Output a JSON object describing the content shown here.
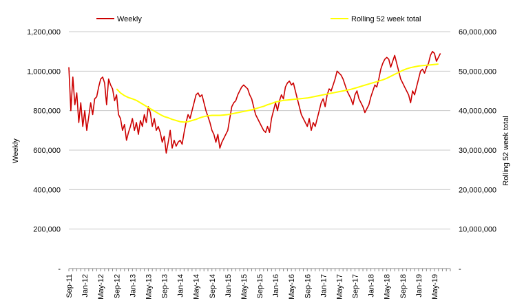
{
  "chart_data": {
    "type": "line",
    "x_type": "date",
    "x_ticks": [
      "Sep-11",
      "Jan-12",
      "May-12",
      "Sep-12",
      "Jan-13",
      "May-13",
      "Sep-13",
      "Jan-14",
      "May-14",
      "Sep-14",
      "Jan-15",
      "May-15",
      "Sep-15",
      "Jan-16",
      "May-16",
      "Sep-16",
      "Jan-17",
      "May-17",
      "Sep-17",
      "Jan-18",
      "May-18",
      "Sep-18",
      "Jan-19",
      "May-19"
    ],
    "xlim": [
      "2011-09",
      "2019-09"
    ],
    "y_left": {
      "label": "Weekly",
      "ticks": [
        "-",
        "200,000",
        "400,000",
        "600,000",
        "800,000",
        "1,000,000",
        "1,200,000"
      ],
      "ylim": [
        0,
        1200000
      ]
    },
    "y_right": {
      "label": "Rolling 52 week total",
      "ticks": [
        "-",
        "10,000,000",
        "20,000,000",
        "30,000,000",
        "40,000,000",
        "50,000,000",
        "60,000,000"
      ],
      "ylim": [
        0,
        60000000
      ]
    },
    "grid": true,
    "legend_position": "top",
    "series": [
      {
        "name": "Weekly",
        "axis": "left",
        "color": "#cc0000",
        "points": [
          [
            "2011-09",
            1020000
          ],
          [
            "2011-09",
            800000
          ],
          [
            "2011-10",
            970000
          ],
          [
            "2011-10",
            830000
          ],
          [
            "2011-11",
            890000
          ],
          [
            "2011-11",
            740000
          ],
          [
            "2011-12",
            840000
          ],
          [
            "2011-12",
            720000
          ],
          [
            "2012-01",
            800000
          ],
          [
            "2012-01",
            700000
          ],
          [
            "2012-02",
            770000
          ],
          [
            "2012-02",
            840000
          ],
          [
            "2012-03",
            780000
          ],
          [
            "2012-03",
            860000
          ],
          [
            "2012-04",
            870000
          ],
          [
            "2012-04",
            920000
          ],
          [
            "2012-05",
            960000
          ],
          [
            "2012-05",
            970000
          ],
          [
            "2012-06",
            940000
          ],
          [
            "2012-06",
            830000
          ],
          [
            "2012-07",
            960000
          ],
          [
            "2012-07",
            930000
          ],
          [
            "2012-08",
            910000
          ],
          [
            "2012-08",
            850000
          ],
          [
            "2012-09",
            880000
          ],
          [
            "2012-09",
            780000
          ],
          [
            "2012-10",
            760000
          ],
          [
            "2012-10",
            700000
          ],
          [
            "2012-11",
            730000
          ],
          [
            "2012-11",
            650000
          ],
          [
            "2012-12",
            690000
          ],
          [
            "2012-12",
            720000
          ],
          [
            "2013-01",
            760000
          ],
          [
            "2013-01",
            700000
          ],
          [
            "2013-02",
            740000
          ],
          [
            "2013-02",
            680000
          ],
          [
            "2013-03",
            750000
          ],
          [
            "2013-03",
            720000
          ],
          [
            "2013-04",
            780000
          ],
          [
            "2013-04",
            740000
          ],
          [
            "2013-05",
            820000
          ],
          [
            "2013-05",
            790000
          ],
          [
            "2013-06",
            720000
          ],
          [
            "2013-06",
            760000
          ],
          [
            "2013-07",
            700000
          ],
          [
            "2013-07",
            720000
          ],
          [
            "2013-08",
            690000
          ],
          [
            "2013-08",
            640000
          ],
          [
            "2013-09",
            670000
          ],
          [
            "2013-09",
            585000
          ],
          [
            "2013-10",
            640000
          ],
          [
            "2013-10",
            700000
          ],
          [
            "2013-11",
            610000
          ],
          [
            "2013-11",
            650000
          ],
          [
            "2013-12",
            620000
          ],
          [
            "2013-12",
            640000
          ],
          [
            "2014-01",
            650000
          ],
          [
            "2014-01",
            630000
          ],
          [
            "2014-02",
            690000
          ],
          [
            "2014-02",
            740000
          ],
          [
            "2014-03",
            780000
          ],
          [
            "2014-03",
            760000
          ],
          [
            "2014-04",
            800000
          ],
          [
            "2014-04",
            840000
          ],
          [
            "2014-05",
            880000
          ],
          [
            "2014-05",
            890000
          ],
          [
            "2014-06",
            870000
          ],
          [
            "2014-06",
            880000
          ],
          [
            "2014-07",
            840000
          ],
          [
            "2014-07",
            800000
          ],
          [
            "2014-08",
            770000
          ],
          [
            "2014-08",
            740000
          ],
          [
            "2014-09",
            700000
          ],
          [
            "2014-09",
            680000
          ],
          [
            "2014-10",
            640000
          ],
          [
            "2014-10",
            680000
          ],
          [
            "2014-11",
            610000
          ],
          [
            "2014-11",
            640000
          ],
          [
            "2014-12",
            660000
          ],
          [
            "2014-12",
            680000
          ],
          [
            "2015-01",
            700000
          ],
          [
            "2015-01",
            760000
          ],
          [
            "2015-02",
            820000
          ],
          [
            "2015-02",
            840000
          ],
          [
            "2015-03",
            850000
          ],
          [
            "2015-03",
            880000
          ],
          [
            "2015-04",
            900000
          ],
          [
            "2015-04",
            920000
          ],
          [
            "2015-05",
            930000
          ],
          [
            "2015-05",
            920000
          ],
          [
            "2015-06",
            910000
          ],
          [
            "2015-06",
            880000
          ],
          [
            "2015-07",
            860000
          ],
          [
            "2015-07",
            820000
          ],
          [
            "2015-08",
            780000
          ],
          [
            "2015-08",
            760000
          ],
          [
            "2015-09",
            740000
          ],
          [
            "2015-09",
            720000
          ],
          [
            "2015-10",
            700000
          ],
          [
            "2015-10",
            690000
          ],
          [
            "2015-11",
            720000
          ],
          [
            "2015-11",
            690000
          ],
          [
            "2015-12",
            760000
          ],
          [
            "2015-12",
            800000
          ],
          [
            "2016-01",
            840000
          ],
          [
            "2016-01",
            800000
          ],
          [
            "2016-02",
            850000
          ],
          [
            "2016-02",
            880000
          ],
          [
            "2016-03",
            860000
          ],
          [
            "2016-03",
            920000
          ],
          [
            "2016-04",
            940000
          ],
          [
            "2016-04",
            950000
          ],
          [
            "2016-05",
            930000
          ],
          [
            "2016-05",
            940000
          ],
          [
            "2016-06",
            900000
          ],
          [
            "2016-06",
            860000
          ],
          [
            "2016-07",
            820000
          ],
          [
            "2016-07",
            780000
          ],
          [
            "2016-08",
            760000
          ],
          [
            "2016-08",
            740000
          ],
          [
            "2016-09",
            720000
          ],
          [
            "2016-09",
            760000
          ],
          [
            "2016-10",
            700000
          ],
          [
            "2016-10",
            740000
          ],
          [
            "2016-11",
            720000
          ],
          [
            "2016-11",
            760000
          ],
          [
            "2016-12",
            800000
          ],
          [
            "2016-12",
            840000
          ],
          [
            "2017-01",
            860000
          ],
          [
            "2017-01",
            820000
          ],
          [
            "2017-02",
            880000
          ],
          [
            "2017-02",
            910000
          ],
          [
            "2017-03",
            900000
          ],
          [
            "2017-03",
            930000
          ],
          [
            "2017-04",
            960000
          ],
          [
            "2017-04",
            1000000
          ],
          [
            "2017-05",
            990000
          ],
          [
            "2017-05",
            980000
          ],
          [
            "2017-06",
            960000
          ],
          [
            "2017-06",
            930000
          ],
          [
            "2017-07",
            900000
          ],
          [
            "2017-07",
            880000
          ],
          [
            "2017-08",
            860000
          ],
          [
            "2017-08",
            830000
          ],
          [
            "2017-09",
            880000
          ],
          [
            "2017-09",
            900000
          ],
          [
            "2017-10",
            860000
          ],
          [
            "2017-10",
            840000
          ],
          [
            "2017-11",
            820000
          ],
          [
            "2017-11",
            790000
          ],
          [
            "2017-12",
            810000
          ],
          [
            "2017-12",
            830000
          ],
          [
            "2018-01",
            870000
          ],
          [
            "2018-01",
            900000
          ],
          [
            "2018-02",
            930000
          ],
          [
            "2018-02",
            920000
          ],
          [
            "2018-03",
            960000
          ],
          [
            "2018-03",
            1010000
          ],
          [
            "2018-04",
            1040000
          ],
          [
            "2018-04",
            1060000
          ],
          [
            "2018-05",
            1070000
          ],
          [
            "2018-05",
            1060000
          ],
          [
            "2018-06",
            1020000
          ],
          [
            "2018-06",
            1050000
          ],
          [
            "2018-07",
            1080000
          ],
          [
            "2018-07",
            1040000
          ],
          [
            "2018-08",
            1000000
          ],
          [
            "2018-08",
            960000
          ],
          [
            "2018-09",
            940000
          ],
          [
            "2018-09",
            920000
          ],
          [
            "2018-10",
            900000
          ],
          [
            "2018-10",
            880000
          ],
          [
            "2018-11",
            840000
          ],
          [
            "2018-11",
            900000
          ],
          [
            "2018-12",
            880000
          ],
          [
            "2018-12",
            920000
          ],
          [
            "2019-01",
            960000
          ],
          [
            "2019-01",
            1000000
          ],
          [
            "2019-02",
            1010000
          ],
          [
            "2019-02",
            990000
          ],
          [
            "2019-03",
            1020000
          ],
          [
            "2019-03",
            1040000
          ],
          [
            "2019-04",
            1080000
          ],
          [
            "2019-04",
            1100000
          ],
          [
            "2019-05",
            1090000
          ],
          [
            "2019-05",
            1050000
          ],
          [
            "2019-06",
            1070000
          ],
          [
            "2019-06",
            1090000
          ]
        ]
      },
      {
        "name": "Rolling 52 week total",
        "axis": "right",
        "color": "#ffff00",
        "points": [
          [
            "2012-09",
            45500000
          ],
          [
            "2012-10",
            44500000
          ],
          [
            "2012-11",
            43800000
          ],
          [
            "2012-12",
            43300000
          ],
          [
            "2013-01",
            43000000
          ],
          [
            "2013-02",
            42600000
          ],
          [
            "2013-03",
            42000000
          ],
          [
            "2013-04",
            41400000
          ],
          [
            "2013-05",
            40800000
          ],
          [
            "2013-06",
            40200000
          ],
          [
            "2013-07",
            39600000
          ],
          [
            "2013-08",
            39000000
          ],
          [
            "2013-09",
            38500000
          ],
          [
            "2013-10",
            38200000
          ],
          [
            "2013-11",
            37800000
          ],
          [
            "2013-12",
            37500000
          ],
          [
            "2014-01",
            37200000
          ],
          [
            "2014-02",
            37100000
          ],
          [
            "2014-03",
            37200000
          ],
          [
            "2014-04",
            37500000
          ],
          [
            "2014-05",
            37800000
          ],
          [
            "2014-06",
            38200000
          ],
          [
            "2014-07",
            38500000
          ],
          [
            "2014-08",
            38700000
          ],
          [
            "2014-09",
            38800000
          ],
          [
            "2014-10",
            38800000
          ],
          [
            "2014-11",
            38800000
          ],
          [
            "2014-12",
            38900000
          ],
          [
            "2015-01",
            39000000
          ],
          [
            "2015-02",
            39200000
          ],
          [
            "2015-03",
            39400000
          ],
          [
            "2015-04",
            39600000
          ],
          [
            "2015-05",
            39800000
          ],
          [
            "2015-06",
            40000000
          ],
          [
            "2015-07",
            40200000
          ],
          [
            "2015-08",
            40500000
          ],
          [
            "2015-09",
            40800000
          ],
          [
            "2015-10",
            41100000
          ],
          [
            "2015-11",
            41500000
          ],
          [
            "2015-12",
            41800000
          ],
          [
            "2016-01",
            42200000
          ],
          [
            "2016-02",
            42400000
          ],
          [
            "2016-03",
            42600000
          ],
          [
            "2016-04",
            42700000
          ],
          [
            "2016-05",
            42800000
          ],
          [
            "2016-06",
            42900000
          ],
          [
            "2016-07",
            43000000
          ],
          [
            "2016-08",
            43100000
          ],
          [
            "2016-09",
            43200000
          ],
          [
            "2016-10",
            43400000
          ],
          [
            "2016-11",
            43600000
          ],
          [
            "2016-12",
            43800000
          ],
          [
            "2017-01",
            44000000
          ],
          [
            "2017-02",
            44200000
          ],
          [
            "2017-03",
            44400000
          ],
          [
            "2017-04",
            44600000
          ],
          [
            "2017-05",
            44800000
          ],
          [
            "2017-06",
            45000000
          ],
          [
            "2017-07",
            45200000
          ],
          [
            "2017-08",
            45400000
          ],
          [
            "2017-09",
            45700000
          ],
          [
            "2017-10",
            46000000
          ],
          [
            "2017-11",
            46300000
          ],
          [
            "2017-12",
            46600000
          ],
          [
            "2018-01",
            46900000
          ],
          [
            "2018-02",
            47200000
          ],
          [
            "2018-03",
            47500000
          ],
          [
            "2018-04",
            47800000
          ],
          [
            "2018-05",
            48200000
          ],
          [
            "2018-06",
            48700000
          ],
          [
            "2018-07",
            49200000
          ],
          [
            "2018-08",
            49700000
          ],
          [
            "2018-09",
            50200000
          ],
          [
            "2018-10",
            50600000
          ],
          [
            "2018-11",
            50900000
          ],
          [
            "2018-12",
            51100000
          ],
          [
            "2019-01",
            51300000
          ],
          [
            "2019-02",
            51400000
          ],
          [
            "2019-03",
            51500000
          ],
          [
            "2019-04",
            51600000
          ],
          [
            "2019-05",
            51700000
          ],
          [
            "2019-06",
            51800000
          ]
        ]
      }
    ]
  }
}
